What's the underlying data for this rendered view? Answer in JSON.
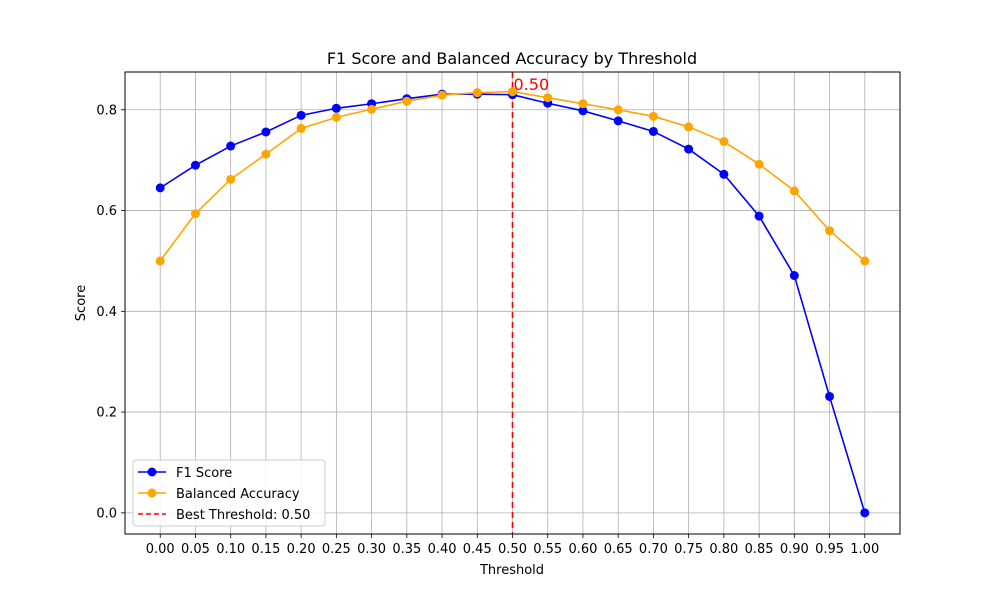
{
  "chart_data": {
    "type": "line",
    "title": "F1 Score and Balanced Accuracy by Threshold",
    "xlabel": "Threshold",
    "ylabel": "Score",
    "xlim": [
      -0.05,
      1.05
    ],
    "ylim": [
      -0.042,
      0.875
    ],
    "grid": true,
    "legend_position": "lower-left",
    "x_tick_labels": [
      "0.00",
      "0.05",
      "0.10",
      "0.15",
      "0.20",
      "0.25",
      "0.30",
      "0.35",
      "0.40",
      "0.45",
      "0.50",
      "0.55",
      "0.60",
      "0.65",
      "0.70",
      "0.75",
      "0.80",
      "0.85",
      "0.90",
      "0.95",
      "1.00"
    ],
    "y_tick_labels": [
      "0.0",
      "0.2",
      "0.4",
      "0.6",
      "0.8"
    ],
    "y_ticks": [
      0.0,
      0.2,
      0.4,
      0.6,
      0.8
    ],
    "x": [
      0.0,
      0.05,
      0.1,
      0.15,
      0.2,
      0.25,
      0.3,
      0.35,
      0.4,
      0.45,
      0.5,
      0.55,
      0.6,
      0.65,
      0.7,
      0.75,
      0.8,
      0.85,
      0.9,
      0.95,
      1.0
    ],
    "series": [
      {
        "name": "F1 Score",
        "color": "#0000ff",
        "values": [
          0.645,
          0.69,
          0.728,
          0.756,
          0.789,
          0.803,
          0.812,
          0.822,
          0.831,
          0.831,
          0.83,
          0.813,
          0.798,
          0.778,
          0.757,
          0.722,
          0.672,
          0.589,
          0.471,
          0.231,
          0.0
        ]
      },
      {
        "name": "Balanced Accuracy",
        "color": "#ffa500",
        "values": [
          0.5,
          0.594,
          0.662,
          0.712,
          0.763,
          0.785,
          0.801,
          0.817,
          0.829,
          0.834,
          0.836,
          0.824,
          0.812,
          0.8,
          0.787,
          0.766,
          0.737,
          0.692,
          0.639,
          0.56,
          0.5
        ]
      }
    ],
    "threshold_line": {
      "x": 0.5,
      "label": "Best Threshold: 0.50",
      "annotation": "0.50",
      "color": "#ff0000"
    }
  }
}
